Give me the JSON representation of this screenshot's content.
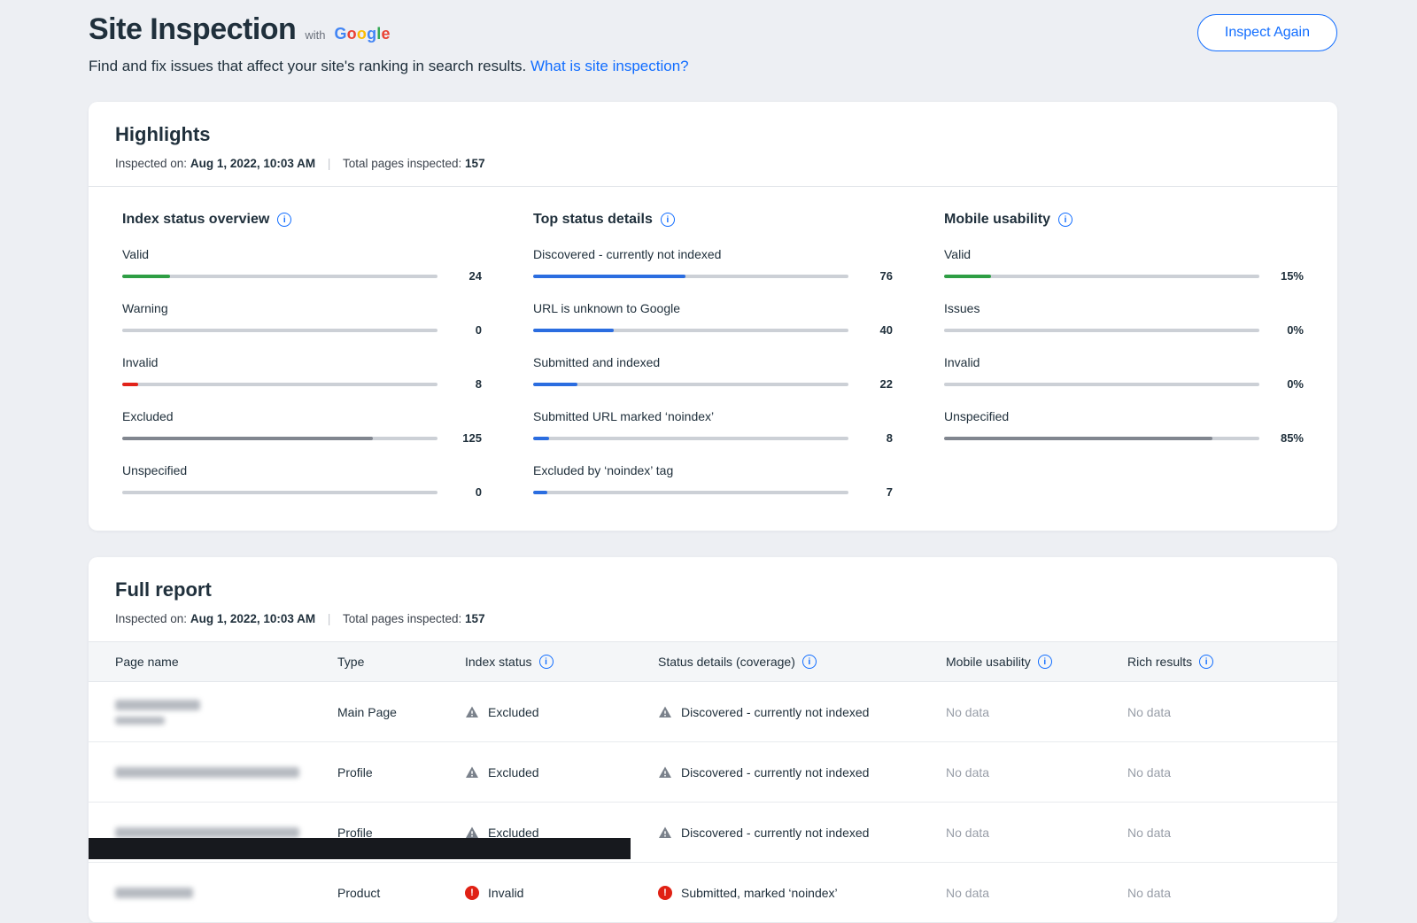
{
  "icons": {
    "info": "i",
    "error": "!"
  },
  "header": {
    "title": "Site Inspection",
    "with_label": "with",
    "google_logo": {
      "letters": [
        {
          "ch": "G",
          "color": "#4285F4"
        },
        {
          "ch": "o",
          "color": "#EA4335"
        },
        {
          "ch": "o",
          "color": "#FBBC05"
        },
        {
          "ch": "g",
          "color": "#4285F4"
        },
        {
          "ch": "l",
          "color": "#34A853"
        },
        {
          "ch": "e",
          "color": "#EA4335"
        }
      ]
    },
    "subtitle": "Find and fix issues that affect your site's ranking in search results.",
    "subtitle_link": "What is site inspection?",
    "inspect_again_label": "Inspect Again"
  },
  "highlights": {
    "title": "Highlights",
    "meta": {
      "inspected_on_label": "Inspected on:",
      "inspected_on_value": "Aug 1, 2022, 10:03 AM",
      "pipe": "|",
      "total_label": "Total pages inspected:",
      "total_value": "157"
    },
    "columns": [
      {
        "title": "Index status overview",
        "items": [
          {
            "label": "Valid",
            "value": "24",
            "pct": 15.3,
            "color": "#2e9e44"
          },
          {
            "label": "Warning",
            "value": "0",
            "pct": 0,
            "color": "#f5a623"
          },
          {
            "label": "Invalid",
            "value": "8",
            "pct": 5.1,
            "color": "#e2231a"
          },
          {
            "label": "Excluded",
            "value": "125",
            "pct": 79.6,
            "color": "#81868f"
          },
          {
            "label": "Unspecified",
            "value": "0",
            "pct": 0,
            "color": "#81868f"
          }
        ]
      },
      {
        "title": "Top status details",
        "items": [
          {
            "label": "Discovered - currently not indexed",
            "value": "76",
            "pct": 48.4,
            "color": "#2b6de0"
          },
          {
            "label": "URL is unknown to Google",
            "value": "40",
            "pct": 25.5,
            "color": "#2b6de0"
          },
          {
            "label": "Submitted and indexed",
            "value": "22",
            "pct": 14.0,
            "color": "#2b6de0"
          },
          {
            "label": "Submitted URL marked ‘noindex’",
            "value": "8",
            "pct": 5.1,
            "color": "#2b6de0"
          },
          {
            "label": "Excluded by ‘noindex’ tag",
            "value": "7",
            "pct": 4.5,
            "color": "#2b6de0"
          }
        ]
      },
      {
        "title": "Mobile usability",
        "items": [
          {
            "label": "Valid",
            "value": "15%",
            "pct": 15,
            "color": "#2e9e44"
          },
          {
            "label": "Issues",
            "value": "0%",
            "pct": 0,
            "color": "#f5a623"
          },
          {
            "label": "Invalid",
            "value": "0%",
            "pct": 0,
            "color": "#e2231a"
          },
          {
            "label": "Unspecified",
            "value": "85%",
            "pct": 85,
            "color": "#81868f"
          }
        ]
      }
    ]
  },
  "full_report": {
    "title": "Full report",
    "meta": {
      "inspected_on_label": "Inspected on:",
      "inspected_on_value": "Aug 1, 2022, 10:03 AM",
      "pipe": "|",
      "total_label": "Total pages inspected:",
      "total_value": "157"
    },
    "table": {
      "headers": [
        {
          "label": "Page name"
        },
        {
          "label": "Type"
        },
        {
          "label": "Index status"
        },
        {
          "label": "Status details (coverage)"
        },
        {
          "label": "Mobile usability"
        },
        {
          "label": "Rich results"
        }
      ],
      "rows": [
        {
          "type": "Main Page",
          "index_status": "Excluded",
          "status_details": "Discovered - currently not indexed",
          "mobile_usability": "No data",
          "rich_results": "No data"
        },
        {
          "type": "Profile",
          "index_status": "Excluded",
          "status_details": "Discovered - currently not indexed",
          "mobile_usability": "No data",
          "rich_results": "No data"
        },
        {
          "type": "Profile",
          "index_status": "Excluded",
          "status_details": "Discovered - currently not indexed",
          "mobile_usability": "No data",
          "rich_results": "No data"
        },
        {
          "type": "Product",
          "index_status": "Invalid",
          "status_details": "Submitted, marked ‘noindex’",
          "mobile_usability": "No data",
          "rich_results": "No data"
        }
      ]
    }
  }
}
